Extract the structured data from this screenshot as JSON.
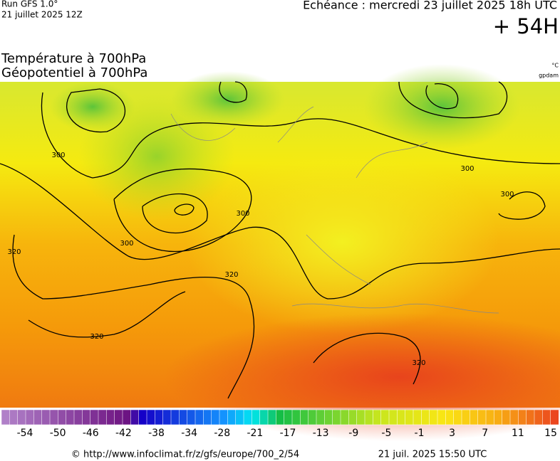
{
  "header": {
    "run": "Run GFS 1.0°",
    "run_date": "21 juillet 2025 12Z",
    "valid": "Echéance : mercredi 23 juillet 2025 18h UTC",
    "lead": "+ 54H"
  },
  "titles": [
    "Température à 700hPa",
    "Géopotentiel à 700hPa"
  ],
  "units": [
    "°C",
    "gpdam"
  ],
  "contour_labels": [
    "300",
    "300",
    "300",
    "300",
    "300",
    "320",
    "320",
    "320",
    "320"
  ],
  "colorbar": {
    "labels": [
      "-54",
      "-50",
      "-46",
      "-42",
      "-38",
      "-34",
      "-28",
      "-21",
      "-17",
      "-13",
      "-9",
      "-5",
      "-1",
      "3",
      "7",
      "11",
      "15"
    ]
  },
  "footer": {
    "source": "© http://www.infoclimat.fr/z/gfs/europe/700_2/54",
    "generated": "21 juil. 2025 15:50 UTC"
  }
}
